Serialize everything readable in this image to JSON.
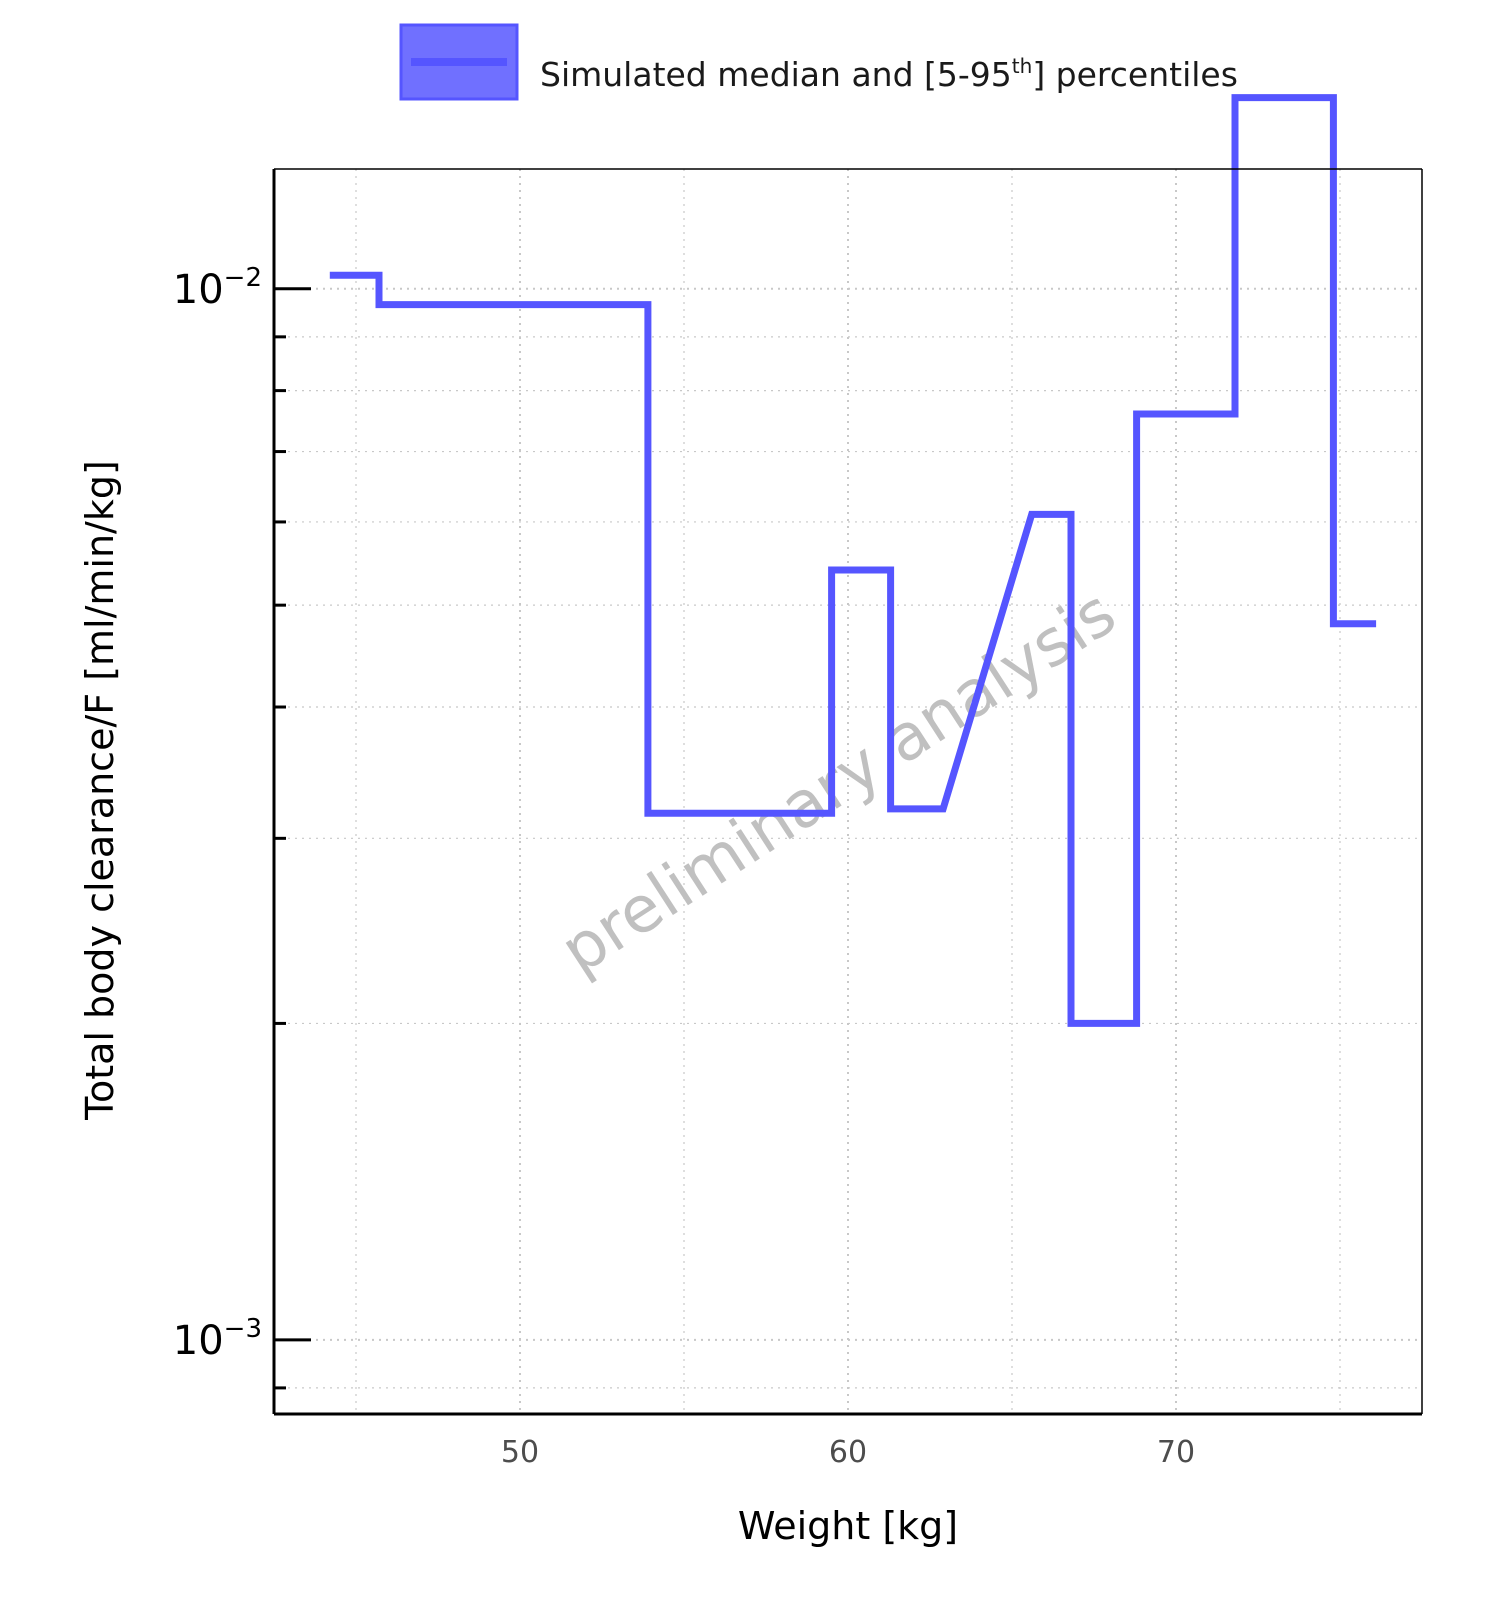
{
  "legend": {
    "label_prefix": "Simulated median and [5-95",
    "label_sup": "th",
    "label_suffix": "] percentiles",
    "swatch_fill": "#7070ff",
    "swatch_border": "#5555ff"
  },
  "watermark": "preliminary analysis",
  "colors": {
    "line": "#5555ff",
    "grid": "#c8c8c8",
    "axis": "#000000",
    "tick_text_x": "#4d4d4d",
    "watermark": "#c0c0c0"
  },
  "chart_data": {
    "type": "line",
    "step": true,
    "xlabel": "Weight [kg]",
    "ylabel": "Total body clearance/F [ml/min/kg]",
    "xlim": [
      42.5,
      77.5
    ],
    "ylim": [
      0.00085,
      0.013
    ],
    "yscale": "log",
    "grid": true,
    "legend_position": "top",
    "x_ticks": [
      50,
      60,
      70
    ],
    "y_ticks": [
      {
        "value": 0.001,
        "base": "10",
        "exp": "−3"
      },
      {
        "value": 0.01,
        "base": "10",
        "exp": "−2"
      }
    ],
    "series": [
      {
        "name": "Simulated median and [5-95th] percentiles",
        "x": [
          44.2,
          45.7,
          45.7,
          53.9,
          53.9,
          59.5,
          59.5,
          61.3,
          61.3,
          62.9,
          65.6,
          66.8,
          66.8,
          68.8,
          68.8,
          71.8,
          71.8,
          74.8,
          74.8,
          76.1
        ],
        "y": [
          0.0103,
          0.0103,
          0.00966,
          0.00966,
          0.00317,
          0.00317,
          0.0054,
          0.0054,
          0.0032,
          0.0032,
          0.0061,
          0.0061,
          0.002,
          0.002,
          0.0076,
          0.0076,
          0.0152,
          0.0152,
          0.0048,
          0.0048
        ]
      }
    ]
  }
}
